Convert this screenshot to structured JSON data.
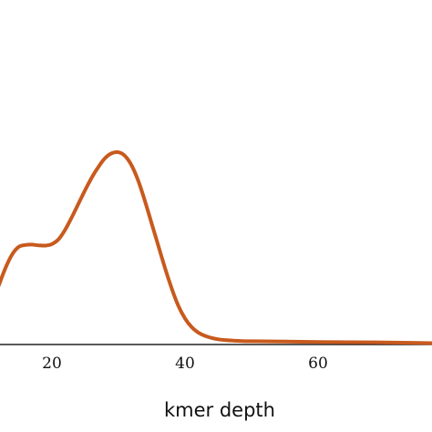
{
  "chart_data": {
    "type": "line",
    "title": "",
    "xlabel": "kmer depth",
    "ylabel": "",
    "xlim": [
      12,
      80
    ],
    "ylim": [
      0,
      1
    ],
    "grid": false,
    "x_ticks": [
      20,
      40,
      60
    ],
    "x_tick_labels": [
      "20",
      "40",
      "60"
    ],
    "series": [
      {
        "color": "#c85a1e",
        "x": [
          12,
          13,
          14,
          15,
          16,
          17,
          18,
          19,
          20,
          21,
          22,
          23,
          24,
          25,
          26,
          27,
          28,
          29,
          30,
          31,
          32,
          33,
          34,
          35,
          36,
          37,
          38,
          39,
          40,
          41,
          42,
          43,
          44,
          45,
          46,
          48,
          50,
          55,
          60,
          65,
          70,
          75,
          80
        ],
        "y": [
          0.305,
          0.395,
          0.465,
          0.505,
          0.515,
          0.517,
          0.513,
          0.512,
          0.52,
          0.545,
          0.595,
          0.66,
          0.73,
          0.8,
          0.865,
          0.92,
          0.965,
          0.99,
          0.995,
          0.975,
          0.925,
          0.845,
          0.74,
          0.625,
          0.51,
          0.395,
          0.29,
          0.2,
          0.135,
          0.09,
          0.062,
          0.045,
          0.034,
          0.027,
          0.023,
          0.019,
          0.017,
          0.015,
          0.013,
          0.012,
          0.011,
          0.008,
          0.005
        ]
      }
    ]
  }
}
